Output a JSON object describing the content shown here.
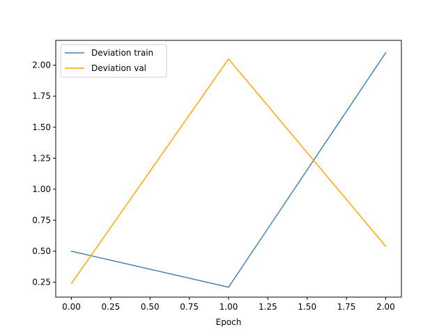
{
  "chart_data": {
    "type": "line",
    "title": "",
    "xlabel": "Epoch",
    "ylabel": "",
    "xlim": [
      -0.1,
      2.1
    ],
    "ylim": [
      0.13,
      2.2
    ],
    "xticks": [
      0.0,
      0.25,
      0.5,
      0.75,
      1.0,
      1.25,
      1.5,
      1.75,
      2.0
    ],
    "xtick_labels": [
      "0.00",
      "0.25",
      "0.50",
      "0.75",
      "1.00",
      "1.25",
      "1.50",
      "1.75",
      "2.00"
    ],
    "yticks": [
      0.25,
      0.5,
      0.75,
      1.0,
      1.25,
      1.5,
      1.75,
      2.0
    ],
    "ytick_labels": [
      "0.25",
      "0.50",
      "0.75",
      "1.00",
      "1.25",
      "1.50",
      "1.75",
      "2.00"
    ],
    "grid": false,
    "legend_position": "top-left",
    "x": [
      0,
      1,
      2
    ],
    "series": [
      {
        "name": "Deviation train",
        "values": [
          0.5,
          0.21,
          2.1
        ],
        "color": "#4682b4"
      },
      {
        "name": "Deviation val",
        "values": [
          0.24,
          2.05,
          0.54
        ],
        "color": "#ffa500"
      }
    ]
  }
}
